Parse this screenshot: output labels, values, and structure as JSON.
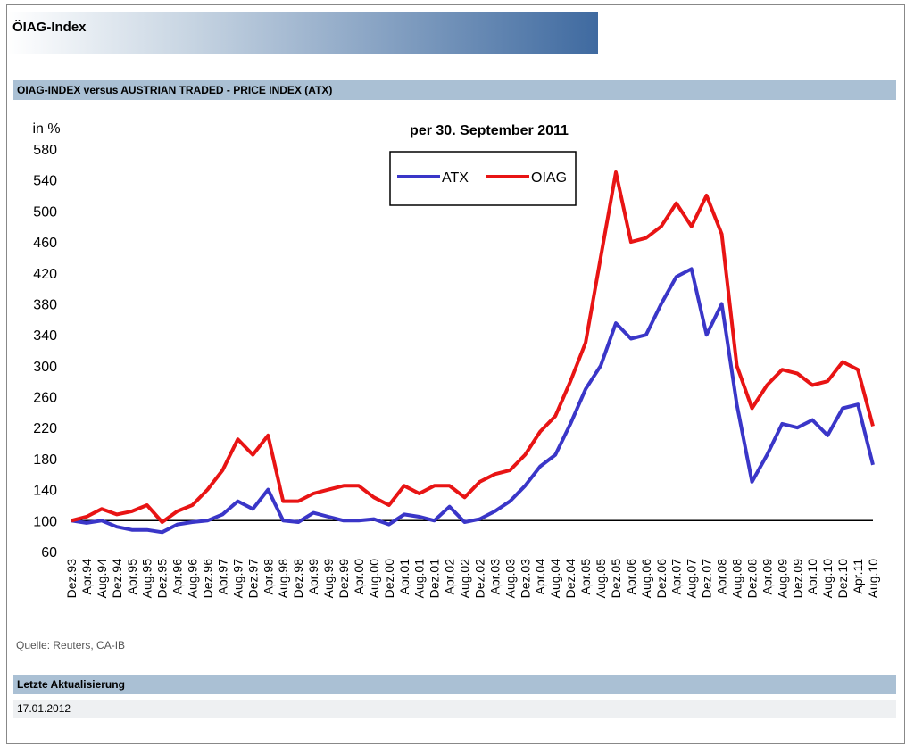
{
  "header": {
    "title": "ÖIAG-Index"
  },
  "section_title": "OIAG-INDEX versus AUSTRIAN TRADED - PRICE INDEX (ATX)",
  "chart_data": {
    "type": "line",
    "title": "per 30. September 2011",
    "y_label": "in %",
    "categories": [
      "Dez.93",
      "Apr.94",
      "Aug.94",
      "Dez.94",
      "Apr.95",
      "Aug.95",
      "Dez.95",
      "Apr.96",
      "Aug.96",
      "Dez.96",
      "Apr.97",
      "Aug.97",
      "Dez.97",
      "Apr.98",
      "Aug.98",
      "Dez.98",
      "Apr.99",
      "Aug.99",
      "Dez.99",
      "Apr.00",
      "Aug.00",
      "Dez.00",
      "Apr.01",
      "Aug.01",
      "Dez.01",
      "Apr.02",
      "Aug.02",
      "Dez.02",
      "Apr.03",
      "Aug.03",
      "Dez.03",
      "Apr.04",
      "Aug.04",
      "Dez.04",
      "Apr.05",
      "Aug.05",
      "Dez.05",
      "Apr.06",
      "Aug.06",
      "Dez.06",
      "Apr.07",
      "Aug.07",
      "Dez.07",
      "Apr.08",
      "Aug.08",
      "Dez.08",
      "Apr.09",
      "Aug.09",
      "Dez.09",
      "Apr.10",
      "Aug.10",
      "Dez.10",
      "Apr.11",
      "Aug.10"
    ],
    "series": [
      {
        "name": "ATX",
        "color": "#3a36c8",
        "values": [
          100,
          97,
          100,
          92,
          88,
          88,
          85,
          95,
          98,
          100,
          108,
          125,
          115,
          140,
          100,
          98,
          110,
          105,
          100,
          100,
          102,
          95,
          108,
          105,
          100,
          118,
          98,
          102,
          112,
          125,
          145,
          170,
          185,
          225,
          270,
          300,
          355,
          335,
          340,
          380,
          415,
          425,
          340,
          380,
          250,
          150,
          185,
          225,
          220,
          230,
          210,
          245,
          250,
          172
        ]
      },
      {
        "name": "OIAG",
        "color": "#e81414",
        "values": [
          100,
          105,
          115,
          108,
          112,
          120,
          98,
          112,
          120,
          140,
          165,
          205,
          185,
          210,
          125,
          125,
          135,
          140,
          145,
          145,
          130,
          120,
          145,
          135,
          145,
          145,
          130,
          150,
          160,
          165,
          185,
          215,
          235,
          280,
          330,
          440,
          550,
          460,
          465,
          480,
          510,
          480,
          520,
          470,
          300,
          245,
          275,
          295,
          290,
          275,
          280,
          305,
          295,
          222
        ]
      }
    ],
    "ylim": [
      60,
      580
    ],
    "yticks": [
      60,
      100,
      140,
      180,
      220,
      260,
      300,
      340,
      380,
      420,
      460,
      500,
      540,
      580
    ],
    "reference_line": 100,
    "legend": "top"
  },
  "source": "Quelle: Reuters, CA-IB",
  "update": {
    "label": "Letzte Aktualisierung",
    "date": "17.01.2012"
  }
}
